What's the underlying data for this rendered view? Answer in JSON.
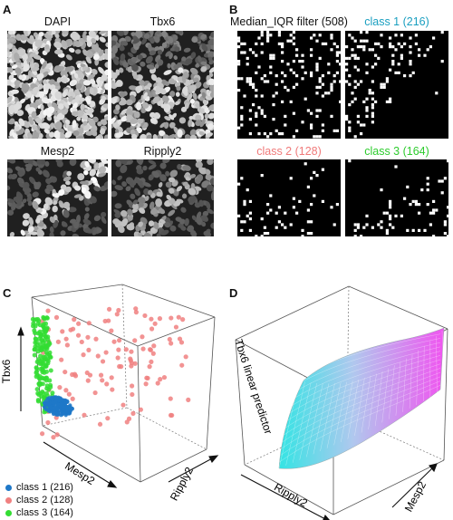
{
  "figure": {
    "panels": {
      "A": {
        "letter": "A",
        "images": [
          "DAPI",
          "Tbx6",
          "Mesp2",
          "Ripply2"
        ]
      },
      "B": {
        "letter": "B",
        "images": [
          {
            "title": "Median_IQR filter (508)",
            "color": "#111111"
          },
          {
            "title": "class 1 (216)",
            "color": "#1a9fc0"
          },
          {
            "title": "class 2 (128)",
            "color": "#f07a7a"
          },
          {
            "title": "class 3 (164)",
            "color": "#2ecc2e"
          }
        ]
      },
      "C": {
        "letter": "C",
        "axis_labels": {
          "tbx6": "Tbx6",
          "mesp2": "Mesp2",
          "ripply2": "Ripply2"
        },
        "legend": [
          {
            "label": "class 1 (216)",
            "color": "#1f78c8"
          },
          {
            "label": "class 2 (128)",
            "color": "#f08080"
          },
          {
            "label": "class 3 (164)",
            "color": "#33dd33"
          }
        ]
      },
      "D": {
        "letter": "D",
        "axis_labels": {
          "z": "Tbx6 linear predictor",
          "ripply2": "Ripply2",
          "mesp2": "Mesp2"
        },
        "surface_colors": [
          "#33e0e0",
          "#ee55ee"
        ]
      }
    }
  },
  "chart_data": {
    "type": "scatter",
    "x_label": "Mesp2",
    "y_label": "Ripply2",
    "z_label": "Tbx6",
    "series": [
      {
        "name": "class 1 (216)",
        "color": "#1f78c8"
      },
      {
        "name": "class 2 (128)",
        "color": "#f08080"
      },
      {
        "name": "class 3 (164)",
        "color": "#33dd33"
      }
    ]
  }
}
